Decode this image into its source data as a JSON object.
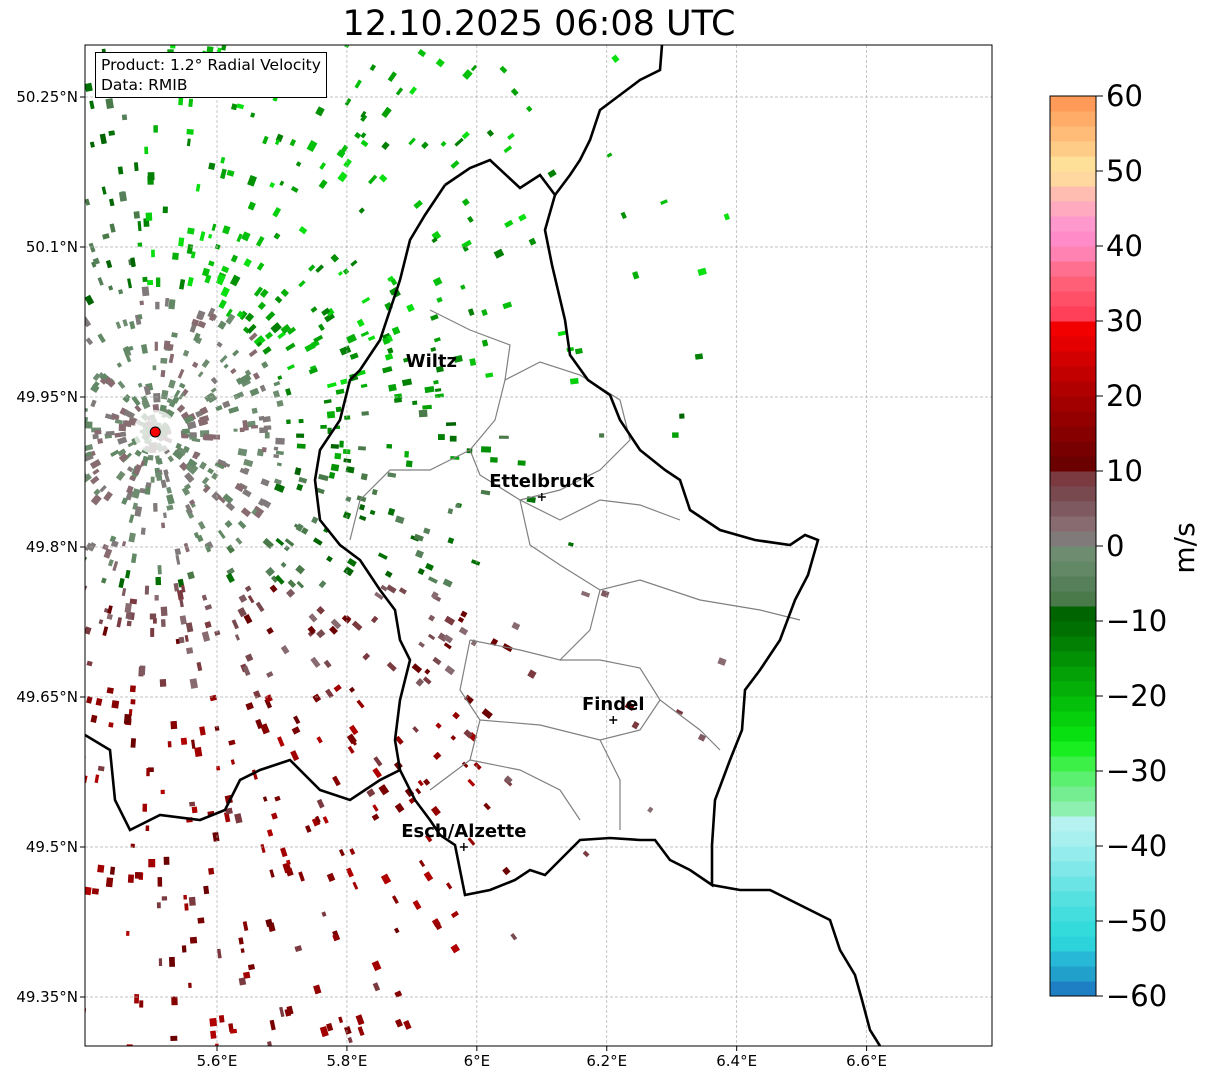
{
  "title": "12.10.2025 06:08 UTC",
  "info": {
    "product": "Product: 1.2° Radial Velocity",
    "data": "Data: RMIB"
  },
  "map": {
    "lon_range": [
      5.4,
      6.8
    ],
    "lat_range": [
      49.3,
      50.3
    ],
    "lon_ticks": [
      {
        "value": 5.6,
        "label": "5.6°E"
      },
      {
        "value": 5.8,
        "label": "5.8°E"
      },
      {
        "value": 6.0,
        "label": "6°E"
      },
      {
        "value": 6.2,
        "label": "6.2°E"
      },
      {
        "value": 6.4,
        "label": "6.4°E"
      },
      {
        "value": 6.6,
        "label": "6.6°E"
      }
    ],
    "lat_ticks": [
      {
        "value": 49.35,
        "label": "49.35°N"
      },
      {
        "value": 49.5,
        "label": "49.5°N"
      },
      {
        "value": 49.65,
        "label": "49.65°N"
      },
      {
        "value": 49.8,
        "label": "49.8°N"
      },
      {
        "value": 49.95,
        "label": "49.95°N"
      },
      {
        "value": 50.1,
        "label": "50.1°N"
      },
      {
        "value": 50.25,
        "label": "50.25°N"
      }
    ],
    "radar_site": {
      "lon": 5.505,
      "lat": 49.915
    },
    "cities": [
      {
        "name": "Wiltz",
        "lon": 5.93,
        "lat": 49.97,
        "marker": false
      },
      {
        "name": "Ettelbruck",
        "lon": 6.1,
        "lat": 49.85,
        "marker": true
      },
      {
        "name": "Findel",
        "lon": 6.21,
        "lat": 49.627,
        "marker": true
      },
      {
        "name": "Esch/Alzette",
        "lon": 5.98,
        "lat": 49.5,
        "marker": true
      }
    ]
  },
  "colorbar": {
    "min": -60,
    "max": 60,
    "ticks": [
      {
        "value": 60,
        "label": "60"
      },
      {
        "value": 50,
        "label": "50"
      },
      {
        "value": 40,
        "label": "40"
      },
      {
        "value": 30,
        "label": "30"
      },
      {
        "value": 20,
        "label": "20"
      },
      {
        "value": 10,
        "label": "10"
      },
      {
        "value": 0,
        "label": "0"
      },
      {
        "value": -10,
        "label": "−10"
      },
      {
        "value": -20,
        "label": "−20"
      },
      {
        "value": -30,
        "label": "−30"
      },
      {
        "value": -40,
        "label": "−40"
      },
      {
        "value": -50,
        "label": "−50"
      },
      {
        "value": -60,
        "label": "−60"
      }
    ],
    "unit": "m/s",
    "stops": [
      {
        "from": -60,
        "to": -58,
        "color": "#1f7fc4"
      },
      {
        "from": -58,
        "to": -56,
        "color": "#22a0cc"
      },
      {
        "from": -56,
        "to": -54,
        "color": "#26b8d6"
      },
      {
        "from": -54,
        "to": -52,
        "color": "#2dd3db"
      },
      {
        "from": -52,
        "to": -50,
        "color": "#34dbdb"
      },
      {
        "from": -50,
        "to": -48,
        "color": "#45dede"
      },
      {
        "from": -48,
        "to": -46,
        "color": "#56e1e1"
      },
      {
        "from": -46,
        "to": -44,
        "color": "#6ae4e4"
      },
      {
        "from": -44,
        "to": -42,
        "color": "#80e8e8"
      },
      {
        "from": -42,
        "to": -40,
        "color": "#94ecec"
      },
      {
        "from": -40,
        "to": -38,
        "color": "#a8f0f0"
      },
      {
        "from": -38,
        "to": -36,
        "color": "#b6f2ef"
      },
      {
        "from": -36,
        "to": -34,
        "color": "#8ef0b0"
      },
      {
        "from": -34,
        "to": -32,
        "color": "#74ee90"
      },
      {
        "from": -32,
        "to": -30,
        "color": "#5cf070"
      },
      {
        "from": -30,
        "to": -28,
        "color": "#3cf048"
      },
      {
        "from": -28,
        "to": -26,
        "color": "#18ee20"
      },
      {
        "from": -26,
        "to": -24,
        "color": "#08e010"
      },
      {
        "from": -24,
        "to": -22,
        "color": "#06d00c"
      },
      {
        "from": -22,
        "to": -20,
        "color": "#05c00a"
      },
      {
        "from": -20,
        "to": -18,
        "color": "#04b008"
      },
      {
        "from": -18,
        "to": -16,
        "color": "#03a006"
      },
      {
        "from": -16,
        "to": -14,
        "color": "#029004"
      },
      {
        "from": -14,
        "to": -12,
        "color": "#018003"
      },
      {
        "from": -12,
        "to": -10,
        "color": "#007002"
      },
      {
        "from": -10,
        "to": -8,
        "color": "#006400"
      },
      {
        "from": -8,
        "to": -6,
        "color": "#4a7a4a"
      },
      {
        "from": -6,
        "to": -4,
        "color": "#56805a"
      },
      {
        "from": -4,
        "to": -2,
        "color": "#628866"
      },
      {
        "from": -2,
        "to": 0,
        "color": "#6e8c70"
      },
      {
        "from": 0,
        "to": 2,
        "color": "#807a7a"
      },
      {
        "from": 2,
        "to": 4,
        "color": "#886b70"
      },
      {
        "from": 4,
        "to": 6,
        "color": "#7e5a60"
      },
      {
        "from": 6,
        "to": 8,
        "color": "#784a50"
      },
      {
        "from": 8,
        "to": 10,
        "color": "#7a3a40"
      },
      {
        "from": 10,
        "to": 12,
        "color": "#6b0000"
      },
      {
        "from": 12,
        "to": 14,
        "color": "#780000"
      },
      {
        "from": 14,
        "to": 16,
        "color": "#860000"
      },
      {
        "from": 16,
        "to": 18,
        "color": "#940000"
      },
      {
        "from": 18,
        "to": 20,
        "color": "#a20000"
      },
      {
        "from": 20,
        "to": 22,
        "color": "#b00000"
      },
      {
        "from": 22,
        "to": 24,
        "color": "#c20000"
      },
      {
        "from": 24,
        "to": 26,
        "color": "#d20000"
      },
      {
        "from": 26,
        "to": 28,
        "color": "#e40000"
      },
      {
        "from": 28,
        "to": 30,
        "color": "#f20000"
      },
      {
        "from": 30,
        "to": 32,
        "color": "#ff4058"
      },
      {
        "from": 32,
        "to": 34,
        "color": "#ff5068"
      },
      {
        "from": 34,
        "to": 36,
        "color": "#ff6078"
      },
      {
        "from": 36,
        "to": 38,
        "color": "#ff7090"
      },
      {
        "from": 38,
        "to": 40,
        "color": "#ff82b2"
      },
      {
        "from": 40,
        "to": 42,
        "color": "#ff8cc8"
      },
      {
        "from": 42,
        "to": 44,
        "color": "#ff98cc"
      },
      {
        "from": 44,
        "to": 46,
        "color": "#ffaabe"
      },
      {
        "from": 46,
        "to": 48,
        "color": "#ffbcb0"
      },
      {
        "from": 48,
        "to": 50,
        "color": "#ffd8a0"
      },
      {
        "from": 50,
        "to": 52,
        "color": "#ffe098"
      },
      {
        "from": 52,
        "to": 54,
        "color": "#ffcc88"
      },
      {
        "from": 54,
        "to": 56,
        "color": "#ffbc78"
      },
      {
        "from": 56,
        "to": 58,
        "color": "#ffac68"
      },
      {
        "from": 58,
        "to": 60,
        "color": "#ff9a58"
      }
    ]
  },
  "colors": {
    "border": "#000000",
    "canton": "#808080",
    "grid": "#b0b0b0",
    "radar_marker": "#ff0000"
  }
}
